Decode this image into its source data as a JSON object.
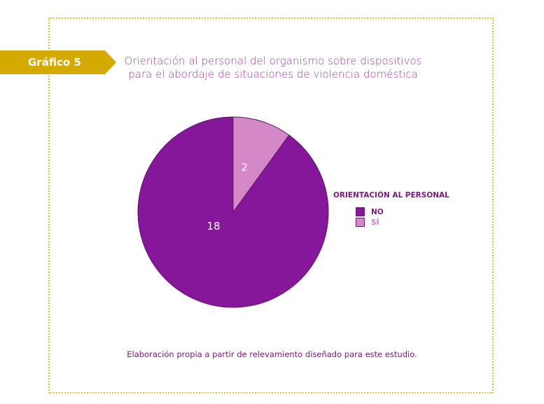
{
  "header": {
    "tag_label": "Gráfico 5",
    "title_line1": "Orientación al personal del organismo sobre dispositivos",
    "title_line2": "para el abordaje de situaciones de violencia doméstica"
  },
  "chart_data": {
    "type": "pie",
    "categories": [
      "NO",
      "SÍ"
    ],
    "values": [
      18,
      2
    ],
    "colors": [
      "#86179a",
      "#d488c8"
    ],
    "legend_title": "ORIENTACIÓN AL PERSONAL",
    "legend_placement": "right",
    "data_labels": [
      "18",
      "2"
    ]
  },
  "legend": {
    "title": "ORIENTACIÓN AL PERSONAL",
    "items": [
      {
        "label": "NO",
        "color": "#86179a",
        "text_color": "#7a1a80"
      },
      {
        "label": "SÍ",
        "color": "#d488c8",
        "text_color": "#c97cc0"
      }
    ]
  },
  "footer": {
    "source": "Elaboración propia a partir de relevamiento diseñado para este estudio."
  }
}
